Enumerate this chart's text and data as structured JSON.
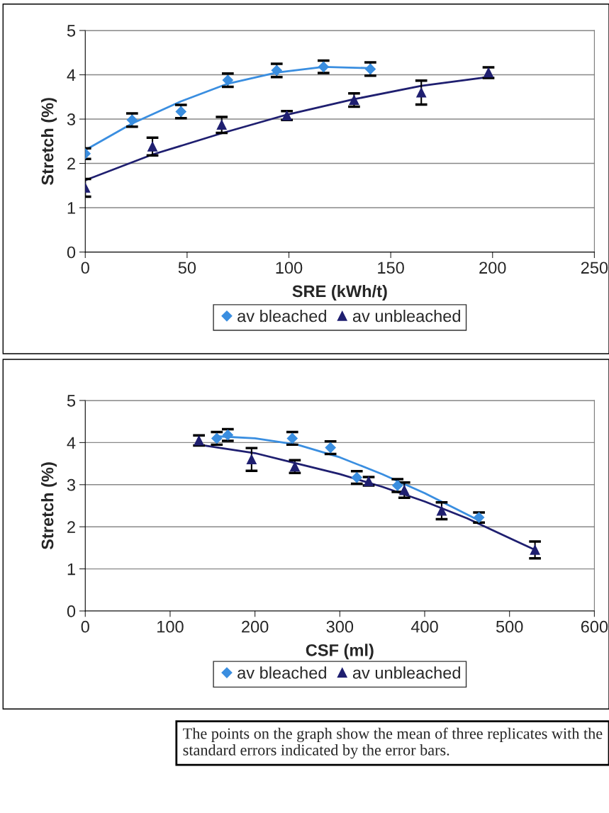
{
  "chart_data": [
    {
      "type": "scatter",
      "xlabel": "SRE (kWh/t)",
      "ylabel": "Stretch (%)",
      "xlim": [
        0,
        250
      ],
      "xticks": [
        0,
        50,
        100,
        150,
        200,
        250
      ],
      "ylim": [
        0,
        5
      ],
      "yticks": [
        0,
        1,
        2,
        3,
        4,
        5
      ],
      "grid": "y",
      "legend": "bottom",
      "series": [
        {
          "name": "av bleached",
          "marker": "diamond",
          "color": "#3a8ee0",
          "x": [
            0,
            23,
            47,
            70,
            94,
            117,
            140
          ],
          "values": [
            2.22,
            2.98,
            3.17,
            3.88,
            4.1,
            4.18,
            4.13
          ],
          "errors": [
            0.12,
            0.15,
            0.15,
            0.15,
            0.15,
            0.14,
            0.15
          ]
        },
        {
          "name": "av unbleached",
          "marker": "triangle",
          "color": "#1f1f70",
          "x": [
            0,
            33,
            67,
            99,
            132,
            165,
            198
          ],
          "values": [
            1.45,
            2.38,
            2.87,
            3.08,
            3.43,
            3.6,
            4.05
          ],
          "errors": [
            0.2,
            0.2,
            0.18,
            0.1,
            0.15,
            0.27,
            0.12
          ]
        },
        {
          "type": "line",
          "color": "#3a8ee0",
          "x": [
            0,
            23,
            47,
            70,
            94,
            117,
            140
          ],
          "values": [
            2.3,
            2.9,
            3.4,
            3.8,
            4.05,
            4.18,
            4.15
          ]
        },
        {
          "type": "line",
          "color": "#1f1f70",
          "x": [
            0,
            33,
            67,
            99,
            132,
            165,
            198
          ],
          "values": [
            1.62,
            2.2,
            2.68,
            3.1,
            3.45,
            3.75,
            3.95
          ]
        }
      ]
    },
    {
      "type": "scatter",
      "xlabel": "CSF (ml)",
      "ylabel": "Stretch (%)",
      "xlim": [
        0,
        600
      ],
      "xticks": [
        0,
        100,
        200,
        300,
        400,
        500,
        600
      ],
      "ylim": [
        0,
        5
      ],
      "yticks": [
        0,
        1,
        2,
        3,
        4,
        5
      ],
      "grid": "y",
      "legend": "bottom",
      "annotations": [
        "The points on the graph show the mean of three replicates with the standard errors indicated by the error bars."
      ],
      "series": [
        {
          "name": "av bleached",
          "marker": "diamond",
          "color": "#3a8ee0",
          "x": [
            155,
            168,
            244,
            289,
            320,
            368,
            464
          ],
          "values": [
            4.1,
            4.18,
            4.1,
            3.88,
            3.17,
            2.98,
            2.22
          ],
          "errors": [
            0.15,
            0.14,
            0.15,
            0.15,
            0.15,
            0.15,
            0.12
          ]
        },
        {
          "name": "av unbleached",
          "marker": "triangle",
          "color": "#1f1f70",
          "x": [
            134,
            196,
            247,
            334,
            376,
            420,
            530
          ],
          "values": [
            4.05,
            3.6,
            3.43,
            3.08,
            2.87,
            2.38,
            1.45
          ],
          "errors": [
            0.12,
            0.27,
            0.15,
            0.1,
            0.18,
            0.2,
            0.2
          ]
        },
        {
          "type": "line",
          "color": "#3a8ee0",
          "x": [
            155,
            200,
            250,
            300,
            350,
            400,
            464
          ],
          "values": [
            4.15,
            4.1,
            3.95,
            3.65,
            3.25,
            2.8,
            2.15
          ]
        },
        {
          "type": "line",
          "color": "#1f1f70",
          "x": [
            134,
            200,
            250,
            300,
            350,
            400,
            450,
            530
          ],
          "values": [
            3.95,
            3.75,
            3.5,
            3.25,
            2.95,
            2.6,
            2.2,
            1.45
          ]
        }
      ]
    }
  ]
}
